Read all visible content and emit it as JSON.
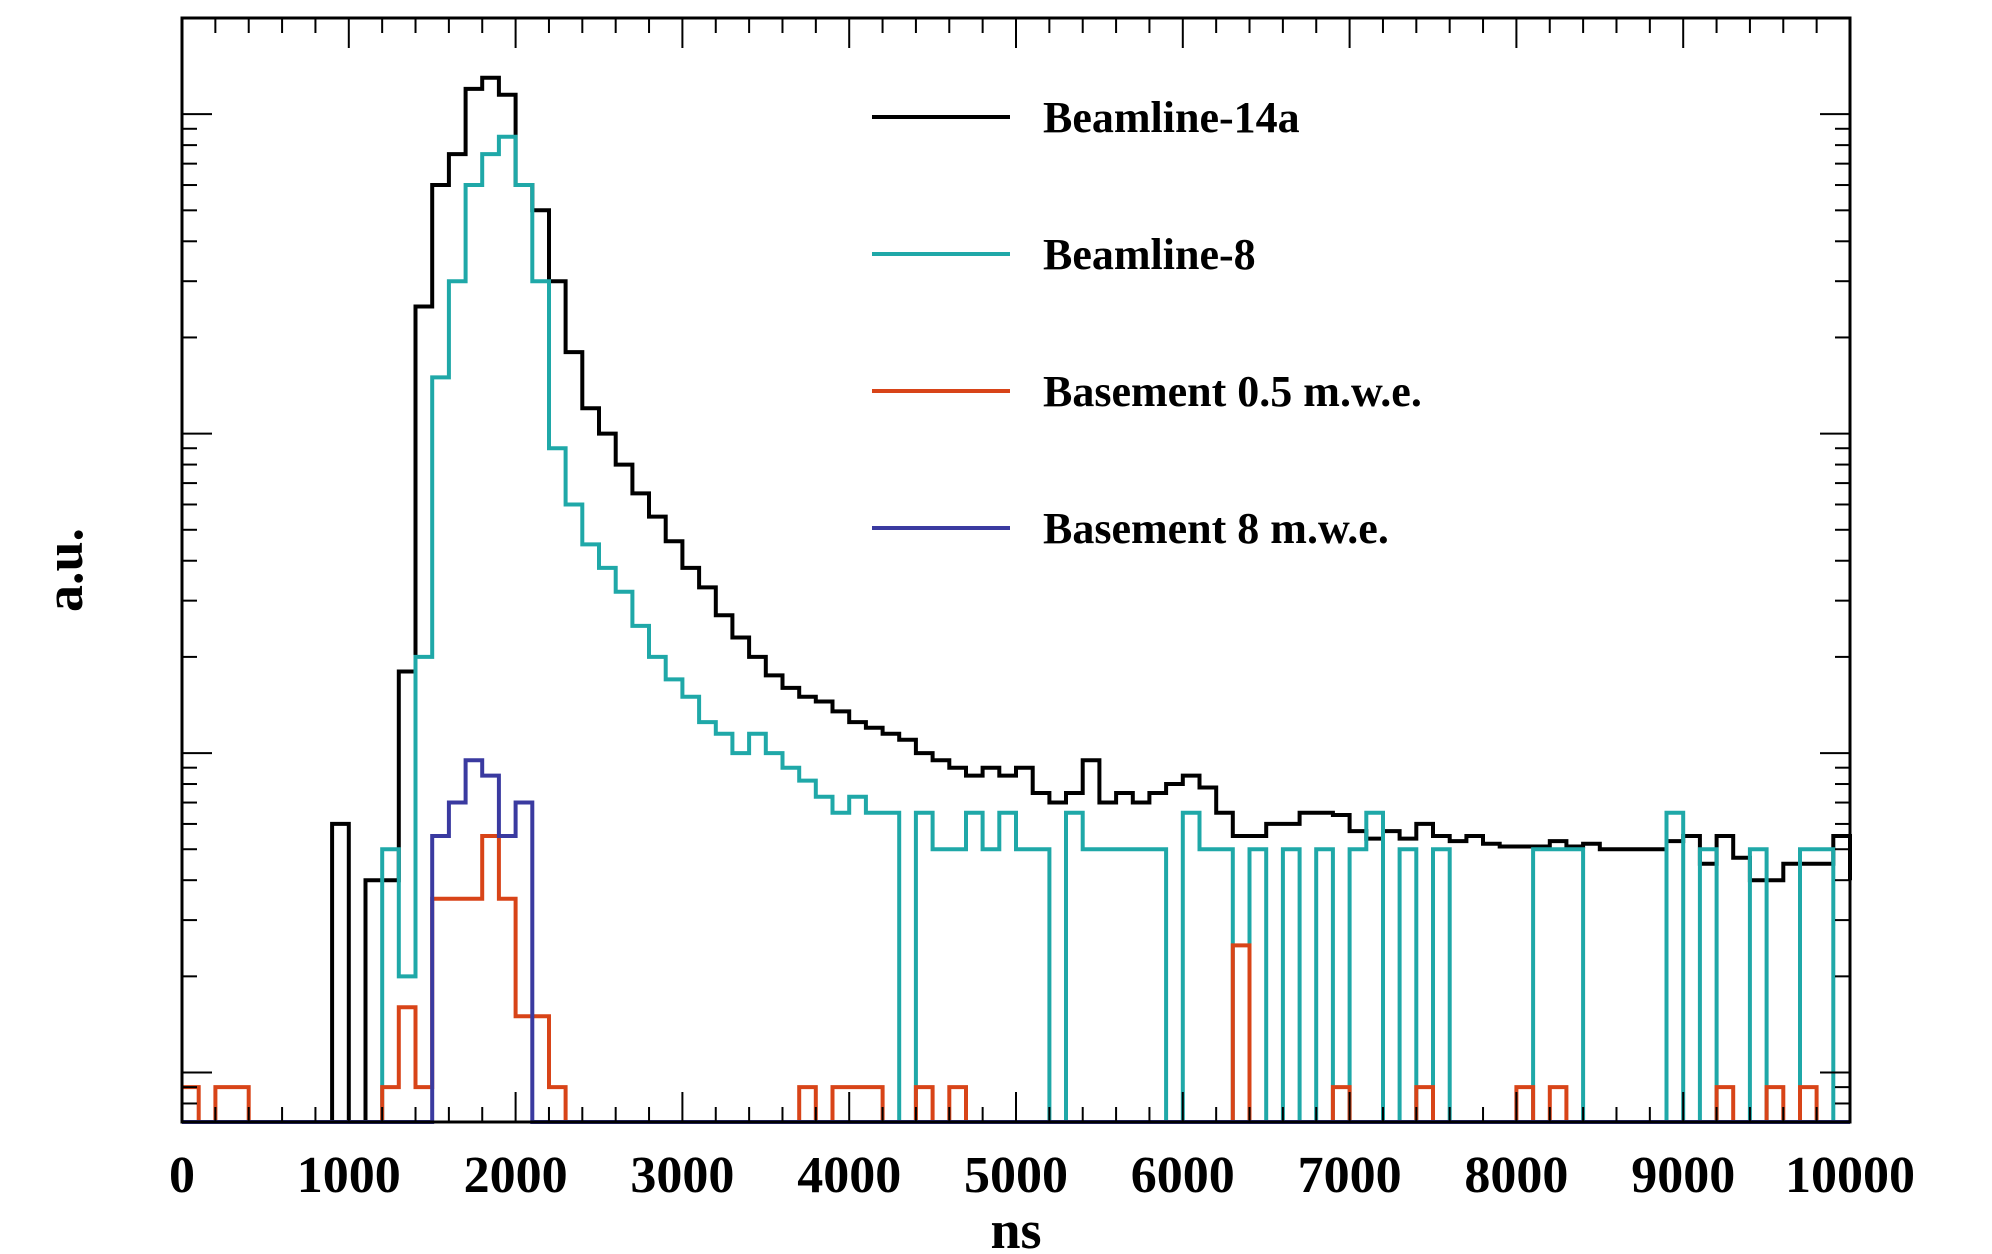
{
  "chart_data": {
    "type": "histogram",
    "title": "",
    "xlabel": "ns",
    "ylabel": "a.u.",
    "xlim": [
      0,
      10000
    ],
    "xticks": [
      "0",
      "1000",
      "2000",
      "3000",
      "4000",
      "5000",
      "6000",
      "7000",
      "8000",
      "9000",
      "10000"
    ],
    "y_scale": "log",
    "ylim": [
      0.07,
      200
    ],
    "grid": false,
    "legend_position": "top-right",
    "bin_edges": [
      0,
      100,
      200,
      300,
      400,
      500,
      600,
      700,
      800,
      900,
      1000,
      1100,
      1200,
      1300,
      1400,
      1500,
      1600,
      1700,
      1800,
      1900,
      2000,
      2100,
      2200,
      2300,
      2400,
      2500,
      2600,
      2700,
      2800,
      2900,
      3000,
      3100,
      3200,
      3300,
      3400,
      3500,
      3600,
      3700,
      3800,
      3900,
      4000,
      4100,
      4200,
      4300,
      4400,
      4500,
      4600,
      4700,
      4800,
      4900,
      5000,
      5100,
      5200,
      5300,
      5400,
      5500,
      5600,
      5700,
      5800,
      5900,
      6000,
      6100,
      6200,
      6300,
      6400,
      6500,
      6600,
      6700,
      6800,
      6900,
      7000,
      7100,
      7200,
      7300,
      7400,
      7500,
      7600,
      7700,
      7800,
      7900,
      8000,
      8100,
      8200,
      8300,
      8400,
      8500,
      8600,
      8700,
      8800,
      8900,
      9000,
      9100,
      9200,
      9300,
      9400,
      9500,
      9600,
      9700,
      9800,
      9900,
      10000
    ],
    "series": [
      {
        "name": "Beamline-14a",
        "color": "#000000",
        "values": [
          0,
          0,
          0,
          0,
          0,
          0,
          0,
          0,
          0,
          0.6,
          0,
          0.4,
          0.4,
          1.8,
          25,
          60,
          75,
          120,
          130,
          115,
          60,
          50,
          30,
          18,
          12,
          10,
          8,
          6.5,
          5.5,
          4.6,
          3.8,
          3.3,
          2.7,
          2.3,
          2.0,
          1.75,
          1.6,
          1.5,
          1.45,
          1.35,
          1.25,
          1.2,
          1.15,
          1.1,
          1.0,
          0.95,
          0.9,
          0.85,
          0.9,
          0.85,
          0.9,
          0.75,
          0.7,
          0.75,
          0.95,
          0.7,
          0.75,
          0.7,
          0.75,
          0.8,
          0.85,
          0.78,
          0.65,
          0.55,
          0.55,
          0.6,
          0.6,
          0.65,
          0.65,
          0.64,
          0.57,
          0.54,
          0.57,
          0.54,
          0.6,
          0.55,
          0.53,
          0.55,
          0.52,
          0.51,
          0.51,
          0.51,
          0.53,
          0.51,
          0.52,
          0.5,
          0.5,
          0.5,
          0.5,
          0.53,
          0.55,
          0.45,
          0.55,
          0.47,
          0.4,
          0.4,
          0.45,
          0.45,
          0.45,
          0.55,
          0.4,
          0.5
        ]
      },
      {
        "name": "Beamline-8",
        "color": "#1fa8a8",
        "values": [
          0,
          0,
          0,
          0,
          0,
          0,
          0,
          0,
          0,
          0,
          0,
          0,
          0.5,
          0.2,
          2.0,
          15,
          30,
          60,
          75,
          85,
          60,
          30,
          9,
          6,
          4.5,
          3.8,
          3.2,
          2.5,
          2.0,
          1.7,
          1.5,
          1.25,
          1.15,
          1.0,
          1.15,
          1.0,
          0.9,
          0.82,
          0.73,
          0.65,
          0.73,
          0.65,
          0.65,
          0,
          0.65,
          0.5,
          0.5,
          0.65,
          0.5,
          0.65,
          0.5,
          0.5,
          0,
          0.65,
          0.5,
          0.5,
          0.5,
          0.5,
          0.5,
          0,
          0.65,
          0.5,
          0.5,
          0,
          0.5,
          0,
          0.5,
          0,
          0.5,
          0,
          0.5,
          0.65,
          0,
          0.5,
          0,
          0.5,
          0,
          0,
          0,
          0,
          0,
          0.5,
          0.5,
          0.5,
          0,
          0,
          0,
          0,
          0,
          0.65,
          0,
          0.5,
          0,
          0,
          0.5,
          0,
          0,
          0.5,
          0.5,
          0
        ]
      },
      {
        "name": "Basement 0.5 m.w.e.",
        "color": "#d84418",
        "values": [
          0.09,
          0,
          0.09,
          0.09,
          0,
          0,
          0,
          0,
          0,
          0,
          0,
          0,
          0.09,
          0.16,
          0.09,
          0.35,
          0.35,
          0.35,
          0.55,
          0.35,
          0.15,
          0.15,
          0.09,
          0,
          0,
          0,
          0,
          0,
          0,
          0,
          0,
          0,
          0,
          0,
          0,
          0,
          0,
          0.09,
          0,
          0.09,
          0.09,
          0.09,
          0,
          0,
          0.09,
          0,
          0.09,
          0,
          0,
          0,
          0,
          0,
          0,
          0,
          0,
          0,
          0,
          0,
          0,
          0,
          0,
          0,
          0,
          0.25,
          0,
          0,
          0,
          0,
          0,
          0.09,
          0,
          0,
          0,
          0,
          0.09,
          0,
          0,
          0,
          0,
          0,
          0.09,
          0,
          0.09,
          0,
          0,
          0,
          0,
          0,
          0,
          0,
          0,
          0,
          0.09,
          0,
          0,
          0.09,
          0,
          0.09,
          0,
          0
        ]
      },
      {
        "name": "Basement 8 m.w.e.",
        "color": "#3a3aa0",
        "values": [
          0,
          0,
          0,
          0,
          0,
          0,
          0,
          0,
          0,
          0,
          0,
          0,
          0,
          0,
          0,
          0.55,
          0.7,
          0.95,
          0.85,
          0.55,
          0.7,
          0,
          0,
          0,
          0,
          0,
          0,
          0,
          0,
          0,
          0,
          0,
          0,
          0,
          0,
          0,
          0,
          0,
          0,
          0,
          0,
          0,
          0,
          0,
          0,
          0,
          0,
          0,
          0,
          0,
          0,
          0,
          0,
          0,
          0,
          0,
          0,
          0,
          0,
          0,
          0,
          0,
          0,
          0,
          0,
          0,
          0,
          0,
          0,
          0,
          0,
          0,
          0,
          0,
          0,
          0,
          0,
          0,
          0,
          0,
          0,
          0,
          0,
          0,
          0,
          0,
          0,
          0,
          0,
          0,
          0,
          0,
          0,
          0,
          0,
          0,
          0,
          0,
          0,
          0
        ]
      }
    ]
  }
}
